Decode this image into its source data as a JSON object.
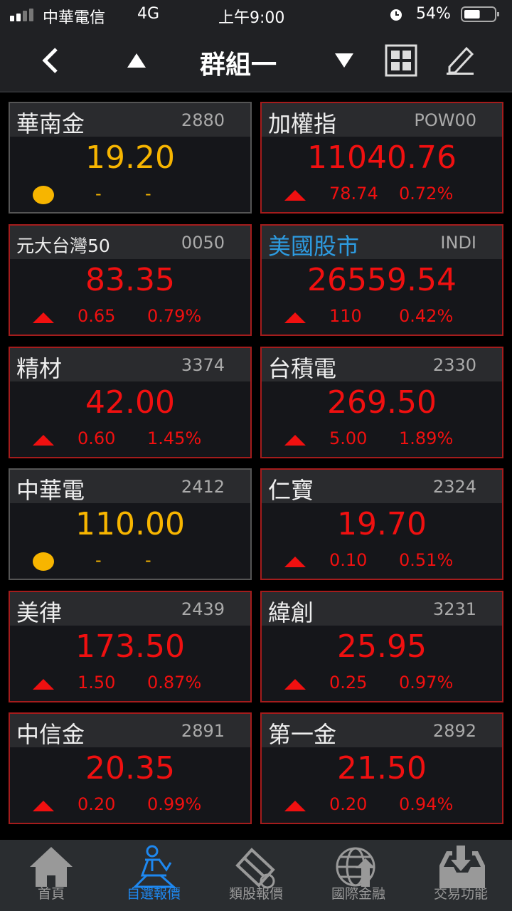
{
  "status": {
    "carrier": "中華電信",
    "network": "4G",
    "time": "上午9:00",
    "battery": "54%",
    "battery_level": 54
  },
  "nav": {
    "title": "群組一"
  },
  "cards": [
    {
      "name": "華南金",
      "code": "2880",
      "price": "19.20",
      "change": "-",
      "percent": "-",
      "state": "flat"
    },
    {
      "name": "加權指",
      "code": "POW00",
      "price": "11040.76",
      "change": "78.74",
      "percent": "0.72%",
      "state": "up"
    },
    {
      "name": "元大台灣50",
      "code": "0050",
      "price": "83.35",
      "change": "0.65",
      "percent": "0.79%",
      "state": "up",
      "small": true
    },
    {
      "name": "美國股市",
      "code": "INDI",
      "price": "26559.54",
      "change": "110",
      "percent": "0.42%",
      "state": "up",
      "blue": true
    },
    {
      "name": "精材",
      "code": "3374",
      "price": "42.00",
      "change": "0.60",
      "percent": "1.45%",
      "state": "up"
    },
    {
      "name": "台積電",
      "code": "2330",
      "price": "269.50",
      "change": "5.00",
      "percent": "1.89%",
      "state": "up"
    },
    {
      "name": "中華電",
      "code": "2412",
      "price": "110.00",
      "change": "-",
      "percent": "-",
      "state": "flat"
    },
    {
      "name": "仁寶",
      "code": "2324",
      "price": "19.70",
      "change": "0.10",
      "percent": "0.51%",
      "state": "up"
    },
    {
      "name": "美律",
      "code": "2439",
      "price": "173.50",
      "change": "1.50",
      "percent": "0.87%",
      "state": "up"
    },
    {
      "name": "緯創",
      "code": "3231",
      "price": "25.95",
      "change": "0.25",
      "percent": "0.97%",
      "state": "up"
    },
    {
      "name": "中信金",
      "code": "2891",
      "price": "20.35",
      "change": "0.20",
      "percent": "0.99%",
      "state": "up"
    },
    {
      "name": "第一金",
      "code": "2892",
      "price": "21.50",
      "change": "0.20",
      "percent": "0.94%",
      "state": "up"
    }
  ],
  "tabs": [
    {
      "label": "首頁",
      "icon": "home-icon"
    },
    {
      "label": "自選報價",
      "icon": "person-desk-icon",
      "active": true
    },
    {
      "label": "類股報價",
      "icon": "film-dollar-icon"
    },
    {
      "label": "國際金融",
      "icon": "globe-up-icon"
    },
    {
      "label": "交易功能",
      "icon": "inbox-download-icon"
    }
  ],
  "colors": {
    "up": "#f01010",
    "flat": "#f7b500",
    "active_tab": "#1e88f0"
  }
}
